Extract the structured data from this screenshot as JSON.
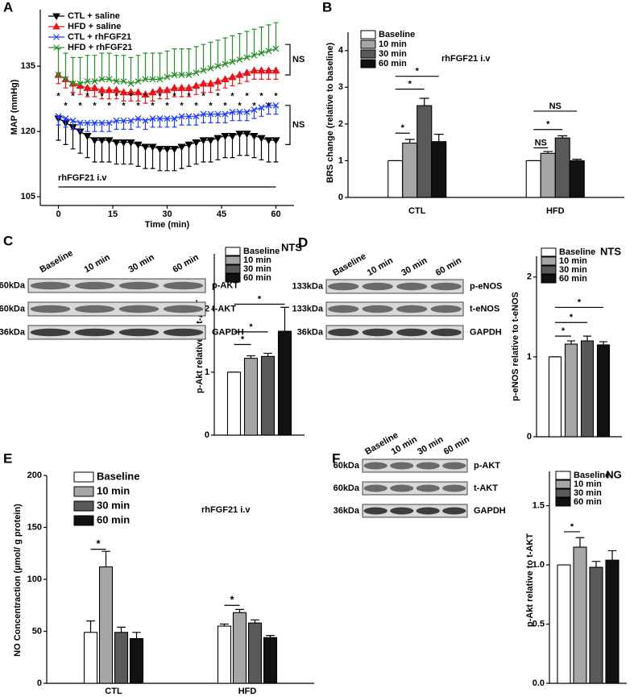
{
  "chart_data": [
    {
      "panel": "A",
      "type": "line",
      "x_label": "Time (min)",
      "y_label": "MAP (mmHg)",
      "x": [
        0,
        2,
        4,
        6,
        8,
        10,
        12,
        14,
        16,
        18,
        20,
        22,
        24,
        26,
        28,
        30,
        32,
        34,
        36,
        38,
        40,
        42,
        44,
        46,
        48,
        50,
        52,
        54,
        56,
        58,
        60
      ],
      "xlim": [
        -5,
        65
      ],
      "xticks": [
        0,
        15,
        30,
        45,
        60
      ],
      "ylim": [
        103,
        148
      ],
      "yticks": [
        105,
        120,
        135
      ],
      "note": "rhFGF21 i.v",
      "series": [
        {
          "name": "CTL + saline",
          "color": "#000000",
          "marker": "triangle-down",
          "error_bars": "down",
          "values": [
            123,
            122,
            121,
            120,
            119,
            118,
            118,
            118,
            117.5,
            117.5,
            117.5,
            117,
            116.5,
            116.5,
            116,
            116,
            116,
            116.5,
            117,
            117.5,
            118,
            118,
            118.5,
            119,
            119,
            119.5,
            119.5,
            119,
            118.5,
            118,
            118
          ],
          "errors": [
            5,
            5,
            5,
            5,
            5,
            5,
            5,
            5,
            5,
            5,
            5,
            5,
            5,
            5,
            5,
            5,
            5,
            5,
            5,
            5,
            5,
            5,
            5,
            5,
            5,
            5,
            5,
            5,
            5,
            5,
            5
          ]
        },
        {
          "name": "HFD + saline",
          "color": "#e8141b",
          "marker": "triangle-up",
          "error_bars": "down",
          "values": [
            133,
            132,
            131,
            130.5,
            130,
            130,
            129.5,
            129.5,
            129.5,
            129,
            129,
            129,
            128.5,
            129,
            129.5,
            129.5,
            130,
            130,
            130,
            130.5,
            131,
            131,
            131.5,
            132,
            132.5,
            133,
            133.5,
            134,
            134,
            134,
            134
          ],
          "errors": [
            2,
            2,
            2,
            2,
            2,
            2,
            2,
            2,
            2,
            2,
            2,
            2,
            2,
            2,
            2,
            2,
            2,
            2,
            2,
            2,
            2,
            2,
            2,
            2,
            2,
            2,
            2,
            2,
            2,
            2,
            2
          ]
        },
        {
          "name": "CTL + rhFGF21",
          "color": "#1f3cff",
          "marker": "x",
          "error_bars": "down",
          "values": [
            123.5,
            123,
            122.5,
            122,
            122,
            122,
            122,
            122,
            122.5,
            122.5,
            122.5,
            123,
            122.5,
            123,
            123,
            123,
            123,
            123.5,
            123.5,
            123.5,
            124,
            124,
            124,
            124,
            124.5,
            124.5,
            124.5,
            125,
            125.5,
            126,
            126
          ],
          "errors": [
            2,
            2,
            2,
            2,
            2,
            2,
            2,
            2,
            2,
            2,
            2,
            2,
            2,
            2,
            2,
            2,
            2,
            2,
            2,
            2,
            2,
            2,
            2,
            2,
            2,
            2,
            2,
            2,
            2,
            2,
            2
          ]
        },
        {
          "name": "HFD + rhFGF21",
          "color": "#2a8c2a",
          "marker": "x",
          "error_bars": "up",
          "values": [
            133,
            132,
            131,
            131,
            131.5,
            131.5,
            132,
            132,
            131.5,
            131.5,
            131,
            131.5,
            132,
            132,
            132,
            132.5,
            133,
            133,
            133,
            133.5,
            134,
            134.5,
            135,
            135.5,
            136,
            136.5,
            137,
            137.5,
            138,
            138.5,
            139
          ],
          "errors": [
            6,
            6,
            6,
            6,
            6,
            6,
            6,
            6,
            6,
            6,
            6,
            6,
            6,
            6,
            6,
            6,
            6,
            6,
            6,
            6,
            6,
            6,
            6,
            6,
            6,
            6,
            6,
            6,
            6,
            6,
            6
          ]
        }
      ],
      "star_rows": [
        {
          "text": "*",
          "y": 128.6,
          "x": [
            0,
            4,
            8,
            12,
            16,
            20,
            24,
            28,
            32,
            36,
            40,
            44,
            48,
            52,
            56,
            60
          ]
        },
        {
          "text": "*",
          "y": 126.4,
          "x": [
            2,
            6,
            10,
            14,
            18,
            22,
            26,
            30,
            34,
            38,
            42,
            46,
            50,
            54,
            58
          ]
        }
      ],
      "brackets": [
        {
          "text": "NS",
          "y": [
            133,
            140
          ]
        },
        {
          "text": "NS",
          "y": [
            117,
            126
          ]
        }
      ]
    },
    {
      "panel": "B",
      "type": "bar",
      "y_label": "BRS change (relative to baseline)",
      "note": "rhFGF21 i.v",
      "categories": [
        "CTL",
        "HFD"
      ],
      "ylim": [
        0,
        4.5
      ],
      "yticks": [
        0,
        1,
        2,
        3,
        4
      ],
      "series": [
        {
          "name": "Baseline",
          "color": "#ffffff",
          "values": [
            1,
            1
          ],
          "errors": [
            0,
            0
          ]
        },
        {
          "name": "10 min",
          "color": "#a6a6a6",
          "values": [
            1.48,
            1.2
          ],
          "errors": [
            0.1,
            0.05
          ]
        },
        {
          "name": "30 min",
          "color": "#595959",
          "values": [
            2.5,
            1.62
          ],
          "errors": [
            0.2,
            0.06
          ]
        },
        {
          "name": "60 min",
          "color": "#111111",
          "values": [
            1.52,
            1.0
          ],
          "errors": [
            0.2,
            0.04
          ]
        }
      ],
      "significance": [
        [
          {
            "text": "*",
            "y": 1.75
          },
          {
            "text": "*",
            "y": 2.95
          },
          {
            "text": "*",
            "y": 3.3
          }
        ],
        [
          {
            "text": "NS",
            "y": 1.35
          },
          {
            "text": "*",
            "y": 1.85
          },
          {
            "text": "NS",
            "y": 2.35
          }
        ]
      ]
    },
    {
      "panel": "C",
      "type": "bar",
      "title": "NTS",
      "y_label": "p-Akt relative to t-AKT",
      "categories": [
        null
      ],
      "ylim": [
        0,
        2.88
      ],
      "yticks": [
        0,
        1,
        2
      ],
      "series": [
        {
          "name": "Baseline",
          "color": "#ffffff",
          "values": [
            1
          ],
          "errors": [
            0
          ]
        },
        {
          "name": "10 min",
          "color": "#a6a6a6",
          "values": [
            1.22
          ],
          "errors": [
            0.04
          ]
        },
        {
          "name": "30 min",
          "color": "#595959",
          "values": [
            1.25
          ],
          "errors": [
            0.05
          ]
        },
        {
          "name": "60 min",
          "color": "#111111",
          "values": [
            1.65
          ],
          "errors": [
            0.38
          ]
        }
      ],
      "significance": [
        [
          {
            "text": "*",
            "y": 1.44
          },
          {
            "text": "*",
            "y": 1.64
          },
          {
            "text": "*",
            "y": 2.08
          }
        ]
      ],
      "blot": {
        "lanes": [
          "Baseline",
          "10 min",
          "30 min",
          "60 min"
        ],
        "rows": [
          {
            "size": "60kDa",
            "label": "p-AKT"
          },
          {
            "size": "60kDa",
            "label": "t-AKT"
          },
          {
            "size": "36kDa",
            "label": "GAPDH"
          }
        ]
      }
    },
    {
      "panel": "D",
      "type": "bar",
      "title": "NTS",
      "y_label": "p-eNOS relative to t-eNOS",
      "categories": [
        null
      ],
      "ylim": [
        0,
        2.26
      ],
      "yticks": [
        0,
        1,
        2
      ],
      "series": [
        {
          "name": "Baseline",
          "color": "#ffffff",
          "values": [
            1
          ],
          "errors": [
            0
          ]
        },
        {
          "name": "10 min",
          "color": "#a6a6a6",
          "values": [
            1.16
          ],
          "errors": [
            0.04
          ]
        },
        {
          "name": "30 min",
          "color": "#595959",
          "values": [
            1.2
          ],
          "errors": [
            0.06
          ]
        },
        {
          "name": "60 min",
          "color": "#111111",
          "values": [
            1.15
          ],
          "errors": [
            0.04
          ]
        }
      ],
      "significance": [
        [
          {
            "text": "*",
            "y": 1.26
          },
          {
            "text": "*",
            "y": 1.43
          },
          {
            "text": "*",
            "y": 1.62
          }
        ]
      ],
      "blot": {
        "lanes": [
          "Baseline",
          "10 min",
          "30 min",
          "60 min"
        ],
        "rows": [
          {
            "size": "133kDa",
            "label": "p-eNOS"
          },
          {
            "size": "133kDa",
            "label": "t-eNOS"
          },
          {
            "size": "36kDa",
            "label": "GAPDH"
          }
        ]
      }
    },
    {
      "panel": "E",
      "type": "bar",
      "y_label": "NO Concentraction (µmol/ g protein)",
      "note": "rhFGF21 i.v",
      "categories": [
        "CTL",
        "HFD"
      ],
      "ylim": [
        0,
        200
      ],
      "yticks": [
        0,
        50,
        100,
        150,
        200
      ],
      "series": [
        {
          "name": "Baseline",
          "color": "#ffffff",
          "values": [
            49,
            55
          ],
          "errors": [
            11,
            2
          ]
        },
        {
          "name": "10 min",
          "color": "#a6a6a6",
          "values": [
            112,
            68
          ],
          "errors": [
            15,
            3
          ]
        },
        {
          "name": "30 min",
          "color": "#595959",
          "values": [
            49,
            58
          ],
          "errors": [
            5,
            3
          ]
        },
        {
          "name": "60 min",
          "color": "#111111",
          "values": [
            43,
            44
          ],
          "errors": [
            6,
            2
          ]
        }
      ],
      "significance": [
        [
          {
            "text": "*",
            "y": 129
          }
        ],
        [
          {
            "text": "*",
            "y": 75
          }
        ]
      ]
    },
    {
      "panel": "F",
      "type": "bar",
      "title": "NG",
      "y_label": "p-Akt relative to t-AKT",
      "categories": [
        null
      ],
      "ylim": [
        0,
        1.79
      ],
      "yticks": [
        {
          "value": 0,
          "label": "0.0"
        },
        0.5,
        {
          "value": 1,
          "label": "1.0"
        },
        1.5
      ],
      "series": [
        {
          "name": "Baseline",
          "color": "#ffffff",
          "values": [
            1
          ],
          "errors": [
            0
          ]
        },
        {
          "name": "10 min",
          "color": "#a6a6a6",
          "values": [
            1.15
          ],
          "errors": [
            0.08
          ]
        },
        {
          "name": "30 min",
          "color": "#595959",
          "values": [
            0.98
          ],
          "errors": [
            0.05
          ]
        },
        {
          "name": "60 min",
          "color": "#111111",
          "values": [
            1.04
          ],
          "errors": [
            0.08
          ]
        }
      ],
      "significance": [
        [
          {
            "text": "*",
            "y": 1.28
          }
        ]
      ],
      "blot": {
        "lanes": [
          "Baseline",
          "10 min",
          "30 min",
          "60 min"
        ],
        "rows": [
          {
            "size": "60kDa",
            "label": "p-AKT"
          },
          {
            "size": "60kDa",
            "label": "t-AKT"
          },
          {
            "size": "36kDa",
            "label": "GAPDH"
          }
        ]
      }
    }
  ]
}
